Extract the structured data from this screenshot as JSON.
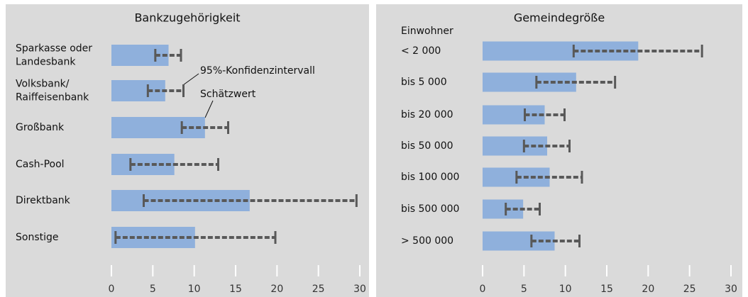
{
  "chart_data": [
    {
      "type": "bar",
      "title": "Bankzugehörigkeit",
      "categories": [
        [
          "Sparkasse oder",
          "Landesbank"
        ],
        [
          "Volksbank/",
          "Raiffeisenbank"
        ],
        "Großbank",
        "Cash-Pool",
        "Direktbank",
        "Sonstige"
      ],
      "values": [
        6.9,
        6.5,
        11.3,
        7.6,
        16.7,
        10.1
      ],
      "ci_low": [
        5.3,
        4.4,
        8.5,
        2.3,
        3.9,
        0.5
      ],
      "ci_high": [
        8.4,
        8.7,
        14.1,
        12.9,
        29.6,
        19.8
      ],
      "color": "#8fb0dc",
      "ci_color": "#595959",
      "annotations": [
        "95%-Konfidenzintervall",
        "Schätzwert"
      ],
      "xlim": [
        0,
        30
      ],
      "xticks": [
        0,
        5,
        10,
        15,
        20,
        25,
        30
      ]
    },
    {
      "type": "bar",
      "title": "Gemeindegröße",
      "ylabel": "Einwohner",
      "categories": [
        "< 2 000",
        "bis 5 000",
        "bis 20 000",
        "bis 50 000",
        "bis 100 000",
        "bis 500 000",
        "> 500 000"
      ],
      "values": [
        18.8,
        11.3,
        7.5,
        7.8,
        8.1,
        4.9,
        8.7
      ],
      "ci_low": [
        11.0,
        6.5,
        5.1,
        5.0,
        4.1,
        2.8,
        5.9
      ],
      "ci_high": [
        26.5,
        16.0,
        9.9,
        10.5,
        12.0,
        6.9,
        11.7
      ],
      "color": "#8fb0dc",
      "ci_color": "#595959",
      "xlim": [
        0,
        30
      ],
      "xticks": [
        0,
        5,
        10,
        15,
        20,
        25,
        30
      ]
    }
  ]
}
